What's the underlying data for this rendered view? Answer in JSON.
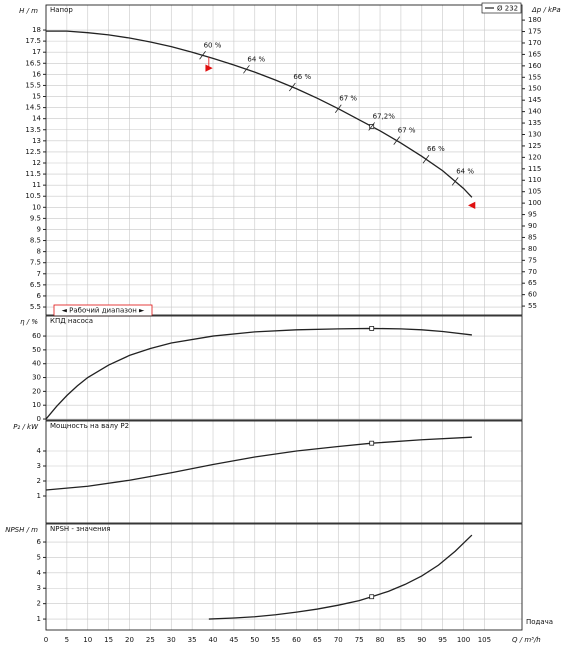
{
  "chart_data": [
    {
      "type": "line",
      "title": "Напор",
      "ylabel": "H / m",
      "y2label": "Δp / kPa",
      "xlim": [
        0,
        114
      ],
      "ylim": [
        5.14,
        19.13
      ],
      "yticks": [
        5.5,
        6,
        6.5,
        7,
        7.5,
        8,
        8.5,
        9,
        9.5,
        10,
        10.5,
        11,
        11.5,
        12,
        12.5,
        13,
        13.5,
        14,
        14.5,
        15,
        15.5,
        16,
        16.5,
        17,
        17.5,
        18
      ],
      "y2lim": [
        51.1,
        186.6
      ],
      "y2ticks": [
        55,
        60,
        65,
        70,
        75,
        80,
        85,
        90,
        95,
        100,
        105,
        110,
        115,
        120,
        125,
        130,
        135,
        140,
        145,
        150,
        155,
        160,
        165,
        170,
        175,
        180
      ],
      "series": [
        {
          "name": "Ø 232",
          "color": "#222222",
          "x": [
            0,
            5,
            10,
            15,
            20,
            25,
            30,
            35,
            40,
            45,
            50,
            55,
            60,
            65,
            70,
            75,
            78,
            80,
            85,
            90,
            95,
            100,
            102
          ],
          "values": [
            17.95,
            17.95,
            17.88,
            17.78,
            17.64,
            17.46,
            17.25,
            17.0,
            16.72,
            16.42,
            16.1,
            15.74,
            15.35,
            14.92,
            14.45,
            13.95,
            13.65,
            13.45,
            12.9,
            12.3,
            11.65,
            10.85,
            10.45
          ]
        }
      ],
      "efficiency_labels": [
        {
          "x": 37.5,
          "label": "60 %"
        },
        {
          "x": 48,
          "label": "64 %"
        },
        {
          "x": 59,
          "label": "66 %"
        },
        {
          "x": 70,
          "label": "67 %"
        },
        {
          "x": 78,
          "label": "67,2%"
        },
        {
          "x": 84,
          "label": "67 %"
        },
        {
          "x": 91,
          "label": "66 %"
        },
        {
          "x": 98,
          "label": "64 %"
        }
      ],
      "duty_point": 78,
      "operating_range": {
        "label": "◄ Рабочий диапазон ►",
        "x": [
          39,
          102
        ]
      }
    },
    {
      "type": "line",
      "title": "КПД насоса",
      "ylabel": "η / %",
      "xlim": [
        0,
        114
      ],
      "ylim": [
        -0.7,
        74.5
      ],
      "yticks": [
        0,
        10,
        20,
        30,
        40,
        50,
        60
      ],
      "series": [
        {
          "name": "η",
          "color": "#222222",
          "x": [
            0,
            2.5,
            5,
            7.5,
            10,
            15,
            20,
            25,
            30,
            40,
            50,
            60,
            70,
            78,
            85,
            90,
            95,
            102
          ],
          "values": [
            0,
            9,
            17,
            24,
            30,
            39,
            46,
            51,
            55,
            60,
            63,
            64.5,
            65.2,
            65.5,
            65.2,
            64.5,
            63.3,
            60.8
          ]
        }
      ],
      "duty_point": 78
    },
    {
      "type": "line",
      "title": "Мощность на валу P2",
      "ylabel": "P₂ / kW",
      "xlim": [
        0,
        114
      ],
      "ylim": [
        -0.8,
        6
      ],
      "yticks": [
        1,
        2,
        3,
        4
      ],
      "series": [
        {
          "name": "P2",
          "color": "#222222",
          "x": [
            0,
            10,
            20,
            30,
            40,
            50,
            60,
            70,
            78,
            90,
            102
          ],
          "values": [
            1.4,
            1.65,
            2.05,
            2.55,
            3.1,
            3.6,
            4.0,
            4.3,
            4.52,
            4.75,
            4.92
          ]
        }
      ],
      "duty_point": 78
    },
    {
      "type": "line",
      "title": "NPSH - значения",
      "ylabel": "NPSH / m",
      "xlabel": "Q / m³/h",
      "xnote": "Подача",
      "xlim": [
        0,
        114
      ],
      "ylim": [
        0.29,
        7.17
      ],
      "yticks": [
        1,
        2,
        3,
        4,
        5,
        6
      ],
      "xticks": [
        0,
        5,
        10,
        15,
        20,
        25,
        30,
        35,
        40,
        45,
        50,
        55,
        60,
        65,
        70,
        75,
        80,
        85,
        90,
        95,
        100,
        105
      ],
      "series": [
        {
          "name": "NPSH",
          "color": "#222222",
          "x": [
            39,
            45,
            50,
            55,
            60,
            65,
            70,
            75,
            78,
            82,
            86,
            90,
            94,
            98,
            102
          ],
          "values": [
            1.0,
            1.07,
            1.15,
            1.28,
            1.45,
            1.65,
            1.9,
            2.2,
            2.45,
            2.8,
            3.25,
            3.8,
            4.5,
            5.4,
            6.45
          ]
        }
      ],
      "duty_point": 78
    }
  ]
}
